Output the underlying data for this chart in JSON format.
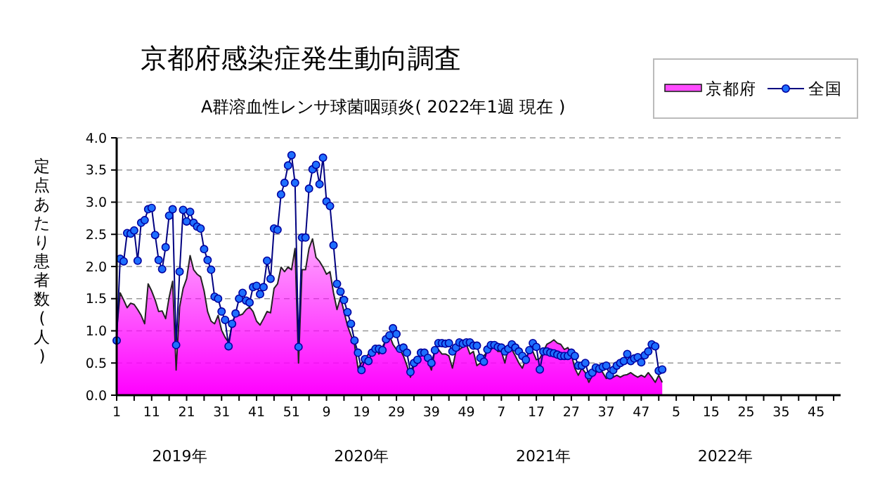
{
  "chart_data": {
    "type": "area",
    "title": "京都府感染症発生動向調査",
    "subtitle": "A群溶血性レンサ球菌咽頭炎( 2022年1週 現在 )",
    "ylabel": "定点あたり患者数(人)",
    "categories": [
      "1",
      null,
      null,
      null,
      null,
      null,
      null,
      null,
      null,
      null,
      "11",
      null,
      null,
      null,
      null,
      null,
      null,
      null,
      null,
      null,
      "21",
      null,
      null,
      null,
      null,
      null,
      null,
      null,
      null,
      null,
      "31",
      null,
      null,
      null,
      null,
      null,
      null,
      null,
      null,
      null,
      "41",
      null,
      null,
      null,
      null,
      null,
      null,
      null,
      null,
      null,
      "51",
      null,
      null,
      null,
      null,
      null,
      null,
      null,
      null,
      null,
      "9",
      null,
      null,
      null,
      null,
      null,
      null,
      null,
      null,
      null,
      "19",
      null,
      null,
      null,
      null,
      null,
      null,
      null,
      null,
      null,
      "29",
      null,
      null,
      null,
      null,
      null,
      null,
      null,
      null,
      null,
      "39",
      null,
      null,
      null,
      null,
      null,
      null,
      null,
      null,
      null,
      "49",
      null,
      null,
      null,
      null,
      null,
      null,
      null,
      null,
      null,
      "7",
      null,
      null,
      null,
      null,
      null,
      null,
      null,
      null,
      null,
      "17",
      null,
      null,
      null,
      null,
      null,
      null,
      null,
      null,
      null,
      "27",
      null,
      null,
      null,
      null,
      null,
      null,
      null,
      null,
      null,
      "37",
      null,
      null,
      null,
      null,
      null,
      null,
      null,
      null,
      null,
      "47",
      null,
      null,
      null,
      null,
      null,
      null,
      null,
      null,
      null,
      "5",
      null,
      null,
      null,
      null,
      null,
      null,
      null,
      null,
      null,
      "15",
      null,
      null,
      null,
      null,
      null,
      null,
      null,
      null,
      null,
      "25",
      null,
      null,
      null,
      null,
      null,
      null,
      null,
      null,
      null,
      "35",
      null,
      null,
      null,
      null,
      null,
      null,
      null,
      null,
      null,
      "45",
      null,
      null,
      null,
      null,
      null,
      null,
      null
    ],
    "series": [
      {
        "name": "京都府",
        "type": "area",
        "color": "#ff00ff",
        "values": [
          1.01,
          1.59,
          1.48,
          1.36,
          1.43,
          1.41,
          1.33,
          1.24,
          1.11,
          1.73,
          1.62,
          1.48,
          1.3,
          1.31,
          1.19,
          1.52,
          1.77,
          0.39,
          1.37,
          1.66,
          1.81,
          2.17,
          1.95,
          1.88,
          1.84,
          1.62,
          1.3,
          1.15,
          1.11,
          1.24,
          1.01,
          0.9,
          0.82,
          1.11,
          1.26,
          1.24,
          1.26,
          1.33,
          1.37,
          1.3,
          1.15,
          1.09,
          1.19,
          1.3,
          1.28,
          1.66,
          1.73,
          1.99,
          1.92,
          1.99,
          1.95,
          2.28,
          0.5,
          1.95,
          1.95,
          2.28,
          2.43,
          2.14,
          2.08,
          1.99,
          1.88,
          1.92,
          1.59,
          1.33,
          1.52,
          1.3,
          1.08,
          0.93,
          0.79,
          0.42,
          0.5,
          0.57,
          0.64,
          0.71,
          0.75,
          0.64,
          0.75,
          0.86,
          0.93,
          0.79,
          0.71,
          0.71,
          0.61,
          0.46,
          0.28,
          0.46,
          0.57,
          0.64,
          0.64,
          0.53,
          0.39,
          0.71,
          0.71,
          0.64,
          0.64,
          0.61,
          0.42,
          0.68,
          0.71,
          0.75,
          0.79,
          0.64,
          0.68,
          0.46,
          0.5,
          0.61,
          0.68,
          0.71,
          0.75,
          0.68,
          0.68,
          0.5,
          0.75,
          0.71,
          0.61,
          0.5,
          0.42,
          0.57,
          0.68,
          0.68,
          0.55,
          0.57,
          0.68,
          0.79,
          0.82,
          0.86,
          0.81,
          0.79,
          0.71,
          0.74,
          0.64,
          0.42,
          0.31,
          0.42,
          0.35,
          0.2,
          0.31,
          0.35,
          0.42,
          0.35,
          0.26,
          0.31,
          0.28,
          0.31,
          0.28,
          0.31,
          0.32,
          0.35,
          0.31,
          0.28,
          0.31,
          0.28,
          0.35,
          0.28,
          0.2,
          0.31,
          0.2,
          null,
          null,
          null,
          null,
          null,
          null,
          null,
          null,
          null,
          null,
          null,
          null,
          null,
          null,
          null,
          null,
          null,
          null,
          null,
          null,
          null,
          null,
          null,
          null,
          null,
          null,
          null,
          null,
          null,
          null,
          null,
          null,
          null,
          null,
          null,
          null,
          null,
          null,
          null,
          null,
          null,
          null,
          null,
          null,
          null,
          null,
          null,
          null,
          null,
          null,
          null
        ]
      },
      {
        "name": "全国",
        "type": "line",
        "color": "#1e6fff",
        "marker": "circle",
        "values": [
          0.85,
          2.12,
          2.08,
          2.52,
          2.51,
          2.56,
          2.09,
          2.68,
          2.72,
          2.89,
          2.91,
          2.49,
          2.1,
          1.96,
          2.3,
          2.79,
          2.89,
          0.78,
          1.92,
          2.88,
          2.7,
          2.85,
          2.68,
          2.62,
          2.59,
          2.27,
          2.1,
          1.95,
          1.53,
          1.5,
          1.3,
          1.17,
          0.76,
          1.11,
          1.27,
          1.5,
          1.59,
          1.47,
          1.44,
          1.68,
          1.7,
          1.57,
          1.68,
          2.09,
          1.81,
          2.59,
          2.57,
          3.12,
          3.3,
          3.57,
          3.73,
          3.3,
          0.75,
          2.45,
          2.45,
          3.21,
          3.51,
          3.58,
          3.28,
          3.69,
          3.01,
          2.94,
          2.33,
          1.73,
          1.61,
          1.48,
          1.29,
          1.11,
          0.85,
          0.66,
          0.39,
          0.56,
          0.53,
          0.66,
          0.72,
          0.72,
          0.7,
          0.87,
          0.93,
          1.04,
          0.95,
          0.72,
          0.74,
          0.66,
          0.36,
          0.5,
          0.55,
          0.66,
          0.66,
          0.58,
          0.5,
          0.7,
          0.81,
          0.81,
          0.8,
          0.81,
          0.68,
          0.74,
          0.82,
          0.8,
          0.82,
          0.82,
          0.77,
          0.77,
          0.58,
          0.52,
          0.71,
          0.78,
          0.78,
          0.75,
          0.74,
          0.68,
          0.72,
          0.79,
          0.74,
          0.68,
          0.61,
          0.55,
          0.7,
          0.81,
          0.75,
          0.4,
          0.68,
          0.68,
          0.66,
          0.65,
          0.63,
          0.61,
          0.61,
          0.61,
          0.66,
          0.61,
          0.46,
          0.46,
          0.5,
          0.31,
          0.35,
          0.43,
          0.41,
          0.44,
          0.46,
          0.31,
          0.39,
          0.46,
          0.5,
          0.53,
          0.64,
          0.53,
          0.57,
          0.59,
          0.51,
          0.62,
          0.68,
          0.79,
          0.76,
          0.38,
          0.4,
          null,
          null,
          null,
          null,
          null,
          null,
          null,
          null,
          null,
          null,
          null,
          null,
          null,
          null,
          null,
          null,
          null,
          null,
          null,
          null,
          null,
          null,
          null,
          null,
          null,
          null,
          null,
          null,
          null,
          null,
          null,
          null,
          null,
          null,
          null,
          null,
          null,
          null,
          null,
          null,
          null,
          null,
          null,
          null,
          null,
          null,
          null,
          null,
          null,
          null,
          null
        ]
      }
    ],
    "ylim": [
      0,
      4
    ],
    "yticks": [
      {
        "value": 0,
        "label": "0.0"
      },
      {
        "value": 0.5,
        "label": "0.5"
      },
      {
        "value": 1,
        "label": "1.0"
      },
      {
        "value": 1.5,
        "label": "1.5"
      },
      {
        "value": 2,
        "label": "2.0"
      },
      {
        "value": 2.5,
        "label": "2.5"
      },
      {
        "value": 3,
        "label": "3.0"
      },
      {
        "value": 3.5,
        "label": "3.5"
      },
      {
        "value": 4,
        "label": "4.0"
      }
    ],
    "grid": "y",
    "legend": "top right",
    "annotations": [
      "2019年",
      "2020年",
      "2021年",
      "2022年"
    ]
  }
}
